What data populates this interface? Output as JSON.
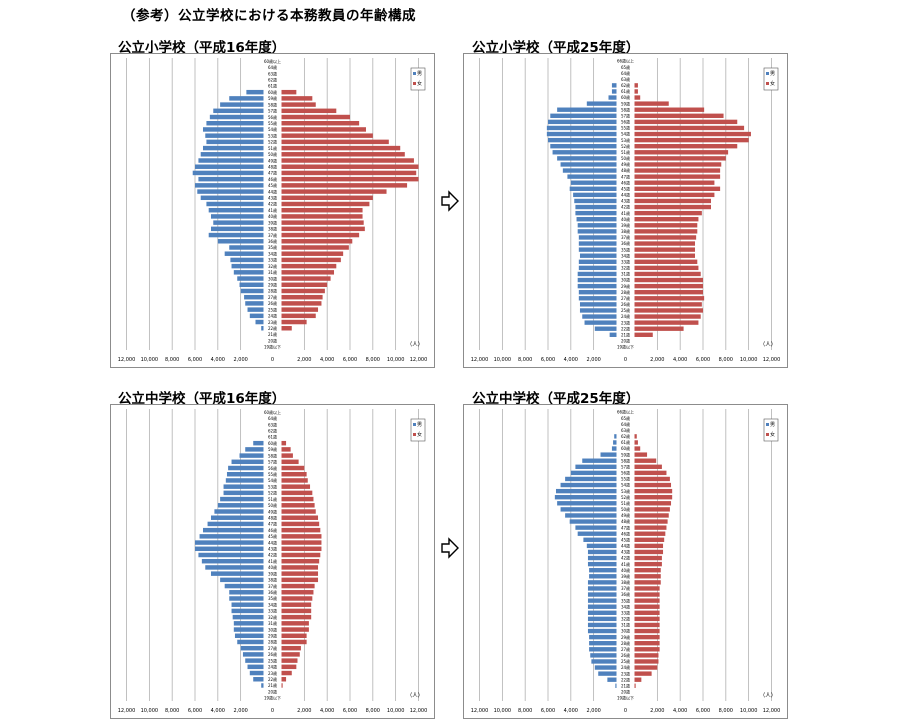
{
  "page_title": "（参考）公立学校における本務教員の年齢構成",
  "colors": {
    "male": "#4f81bd",
    "female": "#c0504d",
    "grid": "#a6a6a6",
    "frame": "#8c8c8c"
  },
  "arrow_icon": "right-outline-arrow",
  "chart_data": [
    {
      "type": "bar",
      "orientation": "horizontal",
      "title": "公立小学校（平成16年度）",
      "unit": "（人）",
      "age_labels": [
        "60歳以上",
        "64歳",
        "63歳",
        "62歳",
        "61歳",
        "60歳",
        "59歳",
        "58歳",
        "57歳",
        "56歳",
        "55歳",
        "54歳",
        "53歳",
        "52歳",
        "51歳",
        "50歳",
        "49歳",
        "48歳",
        "47歳",
        "46歳",
        "45歳",
        "44歳",
        "43歳",
        "42歳",
        "41歳",
        "40歳",
        "39歳",
        "38歳",
        "37歳",
        "36歳",
        "35歳",
        "34歳",
        "33歳",
        "32歳",
        "31歳",
        "30歳",
        "29歳",
        "28歳",
        "27歳",
        "26歳",
        "25歳",
        "24歳",
        "23歳",
        "22歳",
        "21歳",
        "20歳",
        "19歳以下"
      ],
      "x_ticks": [
        "12,000",
        "10,000",
        "8,000",
        "6,000",
        "4,000",
        "2,000",
        "0",
        "2,000",
        "4,000",
        "6,000",
        "8,000",
        "10,000",
        "12,000"
      ],
      "xlim": [
        -12000,
        12000
      ],
      "series": [
        {
          "name": "男",
          "values": [
            0,
            0,
            0,
            0,
            0,
            1500,
            3000,
            3800,
            4400,
            4700,
            5000,
            5300,
            5100,
            5000,
            5300,
            5500,
            5700,
            6000,
            6200,
            5700,
            6000,
            5800,
            5500,
            5000,
            4800,
            4600,
            4400,
            4600,
            4800,
            4000,
            3000,
            3400,
            2900,
            2800,
            2600,
            2300,
            2100,
            2000,
            1700,
            1600,
            1400,
            1200,
            700,
            200,
            0,
            0,
            0
          ]
        },
        {
          "name": "女",
          "values": [
            0,
            0,
            0,
            0,
            0,
            1300,
            2700,
            3000,
            4800,
            6000,
            6800,
            7400,
            8000,
            9400,
            10400,
            10800,
            11600,
            12000,
            11800,
            12000,
            11000,
            9200,
            8000,
            7700,
            7100,
            7100,
            7200,
            7300,
            6800,
            6200,
            5900,
            5400,
            5200,
            4800,
            4600,
            4300,
            4000,
            3800,
            3600,
            3500,
            3200,
            3000,
            2200,
            900,
            0,
            0,
            0
          ]
        }
      ],
      "legend": [
        "男",
        "女"
      ],
      "legend_placement": "top-right"
    },
    {
      "type": "bar",
      "orientation": "horizontal",
      "title": "公立小学校（平成25年度）",
      "unit": "（人）",
      "age_labels": [
        "66歳以上",
        "65歳",
        "64歳",
        "63歳",
        "62歳",
        "61歳",
        "60歳",
        "59歳",
        "58歳",
        "57歳",
        "56歳",
        "55歳",
        "54歳",
        "53歳",
        "52歳",
        "51歳",
        "50歳",
        "49歳",
        "48歳",
        "47歳",
        "46歳",
        "45歳",
        "44歳",
        "43歳",
        "42歳",
        "41歳",
        "40歳",
        "39歳",
        "38歳",
        "37歳",
        "36歳",
        "35歳",
        "34歳",
        "33歳",
        "32歳",
        "31歳",
        "30歳",
        "29歳",
        "28歳",
        "27歳",
        "26歳",
        "25歳",
        "24歳",
        "23歳",
        "22歳",
        "21歳",
        "20歳",
        "19歳以下"
      ],
      "x_ticks": [
        "12,000",
        "10,000",
        "8,000",
        "6,000",
        "4,000",
        "2,000",
        "0",
        "2,000",
        "4,000",
        "6,000",
        "8,000",
        "10,000",
        "12,000"
      ],
      "xlim": [
        -12000,
        12000
      ],
      "series": [
        {
          "name": "男",
          "values": [
            0,
            0,
            0,
            0,
            400,
            400,
            700,
            2600,
            5200,
            5800,
            6000,
            6100,
            6100,
            6000,
            5800,
            5600,
            5200,
            4900,
            4700,
            4300,
            4000,
            4100,
            3800,
            3700,
            3600,
            3600,
            3500,
            3400,
            3400,
            3300,
            3300,
            3300,
            3200,
            3300,
            3300,
            3400,
            3400,
            3400,
            3300,
            3300,
            3200,
            3200,
            3000,
            2800,
            1900,
            600,
            0,
            0
          ]
        },
        {
          "name": "女",
          "values": [
            0,
            0,
            0,
            0,
            300,
            300,
            500,
            3000,
            6100,
            7800,
            9000,
            9600,
            10200,
            10000,
            9000,
            8200,
            8000,
            7600,
            7500,
            7500,
            7000,
            7500,
            7000,
            6700,
            6700,
            5900,
            5600,
            5500,
            5500,
            5400,
            5300,
            5300,
            5300,
            5500,
            5600,
            5800,
            6000,
            6000,
            6000,
            6100,
            5900,
            6000,
            5800,
            5600,
            4300,
            1600,
            0,
            0
          ]
        }
      ],
      "legend": [
        "男",
        "女"
      ],
      "legend_placement": "top-right"
    },
    {
      "type": "bar",
      "orientation": "horizontal",
      "title": "公立中学校（平成16年度）",
      "unit": "（人）",
      "age_labels": [
        "60歳以上",
        "64歳",
        "63歳",
        "62歳",
        "61歳",
        "60歳",
        "59歳",
        "58歳",
        "57歳",
        "56歳",
        "55歳",
        "54歳",
        "53歳",
        "52歳",
        "51歳",
        "50歳",
        "49歳",
        "48歳",
        "47歳",
        "46歳",
        "45歳",
        "44歳",
        "43歳",
        "42歳",
        "41歳",
        "40歳",
        "39歳",
        "38歳",
        "37歳",
        "36歳",
        "35歳",
        "34歳",
        "33歳",
        "32歳",
        "31歳",
        "30歳",
        "29歳",
        "28歳",
        "27歳",
        "26歳",
        "25歳",
        "24歳",
        "23歳",
        "22歳",
        "21歳",
        "20歳",
        "19歳以下"
      ],
      "x_ticks": [
        "12,000",
        "10,000",
        "8,000",
        "6,000",
        "4,000",
        "2,000",
        "0",
        "2,000",
        "4,000",
        "6,000",
        "8,000",
        "10,000",
        "12,000"
      ],
      "xlim": [
        -12000,
        12000
      ],
      "series": [
        {
          "name": "男",
          "values": [
            0,
            0,
            0,
            0,
            0,
            900,
            1600,
            2100,
            2800,
            3100,
            3200,
            3300,
            3500,
            3500,
            3800,
            4000,
            4300,
            4600,
            4900,
            5300,
            5600,
            6000,
            6000,
            5700,
            5400,
            5100,
            4600,
            3800,
            3400,
            3000,
            3000,
            2800,
            2800,
            2700,
            2600,
            2600,
            2500,
            2300,
            2000,
            1800,
            1600,
            1400,
            1200,
            900,
            200,
            0,
            0
          ]
        },
        {
          "name": "女",
          "values": [
            0,
            0,
            0,
            0,
            0,
            400,
            800,
            1000,
            1500,
            2000,
            2200,
            2300,
            2500,
            2700,
            2800,
            2900,
            3000,
            3200,
            3300,
            3400,
            3500,
            3500,
            3500,
            3400,
            3300,
            3200,
            3200,
            3200,
            2900,
            2800,
            2700,
            2600,
            2600,
            2600,
            2400,
            2400,
            2200,
            2200,
            1700,
            1600,
            1400,
            1300,
            900,
            400,
            100,
            0,
            0
          ]
        }
      ],
      "legend": [
        "男",
        "女"
      ],
      "legend_placement": "top-right"
    },
    {
      "type": "bar",
      "orientation": "horizontal",
      "title": "公立中学校（平成25年度）",
      "unit": "（人）",
      "age_labels": [
        "66歳以上",
        "65歳",
        "64歳",
        "63歳",
        "62歳",
        "61歳",
        "60歳",
        "59歳",
        "58歳",
        "57歳",
        "56歳",
        "55歳",
        "54歳",
        "53歳",
        "52歳",
        "51歳",
        "50歳",
        "49歳",
        "48歳",
        "47歳",
        "46歳",
        "45歳",
        "44歳",
        "43歳",
        "42歳",
        "41歳",
        "40歳",
        "39歳",
        "38歳",
        "37歳",
        "36歳",
        "35歳",
        "34歳",
        "33歳",
        "32歳",
        "31歳",
        "30歳",
        "29歳",
        "28歳",
        "27歳",
        "26歳",
        "25歳",
        "24歳",
        "23歳",
        "22歳",
        "21歳",
        "20歳",
        "19歳以下"
      ],
      "x_ticks": [
        "12,000",
        "10,000",
        "8,000",
        "6,000",
        "4,000",
        "2,000",
        "0",
        "2,000",
        "4,000",
        "6,000",
        "8,000",
        "10,000",
        "12,000"
      ],
      "xlim": [
        -12000,
        12000
      ],
      "series": [
        {
          "name": "男",
          "values": [
            0,
            0,
            0,
            0,
            200,
            300,
            400,
            1400,
            3000,
            3600,
            4000,
            4500,
            4900,
            5300,
            5400,
            5200,
            4900,
            4500,
            4100,
            3600,
            3400,
            2900,
            2600,
            2500,
            2500,
            2500,
            2400,
            2400,
            2500,
            2500,
            2500,
            2500,
            2500,
            2500,
            2500,
            2500,
            2500,
            2400,
            2400,
            2400,
            2300,
            2200,
            1900,
            1600,
            800,
            100,
            0,
            0
          ]
        },
        {
          "name": "女",
          "values": [
            0,
            0,
            0,
            0,
            200,
            300,
            500,
            1100,
            1900,
            2400,
            2800,
            3100,
            3200,
            3300,
            3300,
            3200,
            3100,
            3000,
            2900,
            2800,
            2700,
            2600,
            2500,
            2500,
            2400,
            2400,
            2300,
            2300,
            2300,
            2200,
            2200,
            2200,
            2200,
            2200,
            2200,
            2200,
            2200,
            2200,
            2200,
            2200,
            2100,
            2100,
            2000,
            1500,
            600,
            100,
            0,
            0
          ]
        }
      ],
      "legend": [
        "男",
        "女"
      ],
      "legend_placement": "top-right"
    }
  ]
}
